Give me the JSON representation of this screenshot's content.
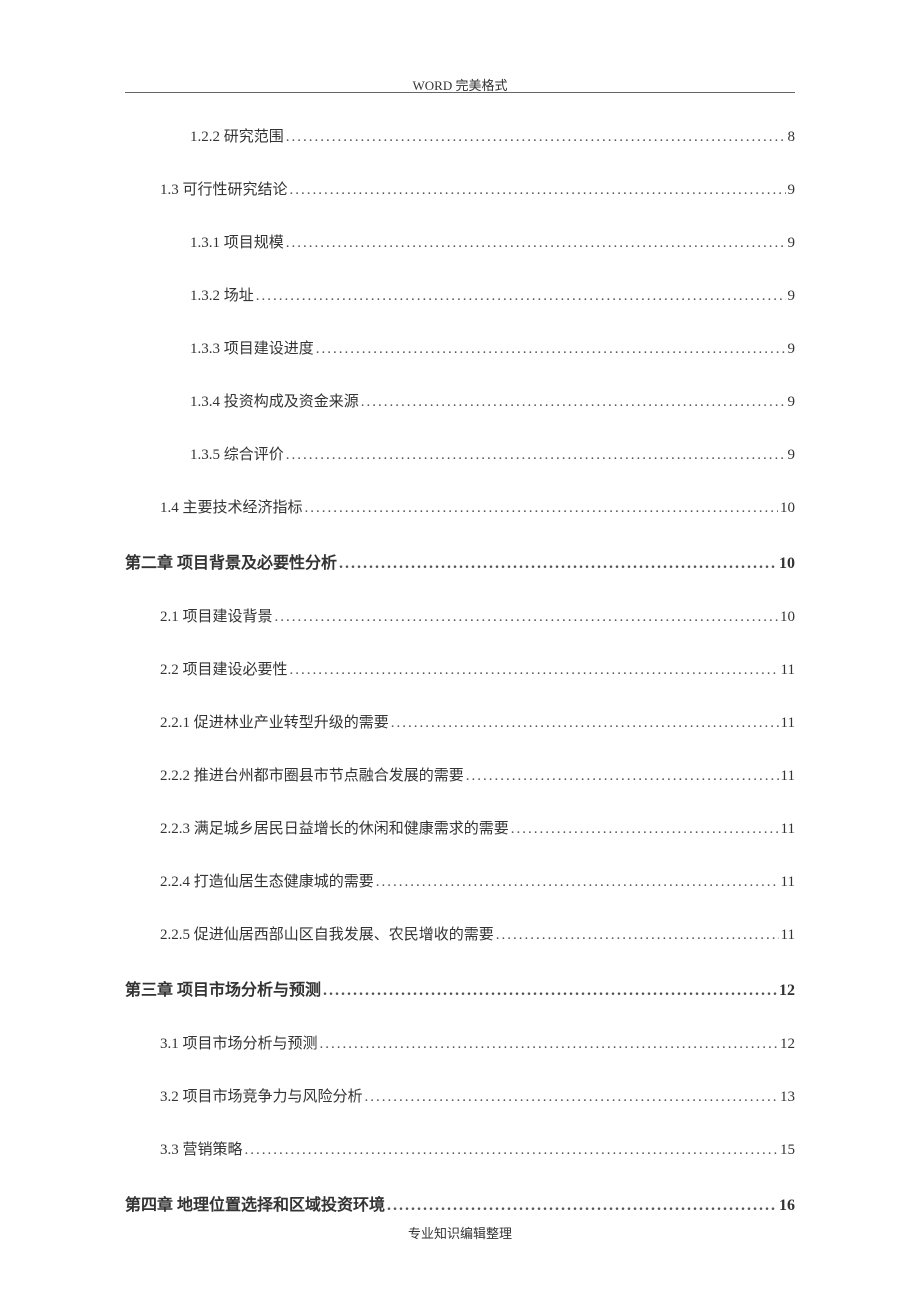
{
  "header": {
    "text": "WORD 完美格式"
  },
  "footer": {
    "text": "专业知识编辑整理"
  },
  "toc": {
    "entries": [
      {
        "label": "1.2.2  研究范围",
        "page": "8",
        "level": 2,
        "bold": false
      },
      {
        "label": "1.3  可行性研究结论",
        "page": "9",
        "level": 1,
        "bold": false
      },
      {
        "label": "1.3.1  项目规模",
        "page": "9",
        "level": 2,
        "bold": false
      },
      {
        "label": "1.3.2  场址",
        "page": "9",
        "level": 2,
        "bold": false
      },
      {
        "label": "1.3.3  项目建设进度",
        "page": "9",
        "level": 2,
        "bold": false
      },
      {
        "label": "1.3.4  投资构成及资金来源",
        "page": "9",
        "level": 2,
        "bold": false
      },
      {
        "label": "1.3.5  综合评价",
        "page": "9",
        "level": 2,
        "bold": false
      },
      {
        "label": "1.4  主要技术经济指标",
        "page": "10",
        "level": 1,
        "bold": false
      },
      {
        "label": "第二章   项目背景及必要性分析",
        "page": "10",
        "level": 0,
        "bold": true
      },
      {
        "label": "2.1  项目建设背景",
        "page": "10",
        "level": 1,
        "bold": false
      },
      {
        "label": "2.2 项目建设必要性",
        "page": "11",
        "level": 1,
        "bold": false
      },
      {
        "label": "2.2.1  促进林业产业转型升级的需要",
        "page": "11",
        "level": 1,
        "bold": false
      },
      {
        "label": "2.2.2  推进台州都市圈县市节点融合发展的需要",
        "page": "11",
        "level": 1,
        "bold": false
      },
      {
        "label": "2.2.3  满足城乡居民日益增长的休闲和健康需求的需要",
        "page": "11",
        "level": 1,
        "bold": false
      },
      {
        "label": "2.2.4  打造仙居生态健康城的需要",
        "page": "11",
        "level": 1,
        "bold": false
      },
      {
        "label": "2.2.5  促进仙居西部山区自我发展、农民增收的需要",
        "page": "11",
        "level": 1,
        "bold": false
      },
      {
        "label": "第三章   项目市场分析与预测",
        "page": "12",
        "level": 0,
        "bold": true
      },
      {
        "label": "3.1  项目市场分析与预测",
        "page": "12",
        "level": 1,
        "bold": false
      },
      {
        "label": "3.2  项目市场竞争力与风险分析",
        "page": "13",
        "level": 1,
        "bold": false
      },
      {
        "label": "3.3  营销策略",
        "page": "15",
        "level": 1,
        "bold": false
      },
      {
        "label": "第四章  地理位置选择和区域投资环境",
        "page": "16",
        "level": 0,
        "bold": true
      }
    ]
  }
}
